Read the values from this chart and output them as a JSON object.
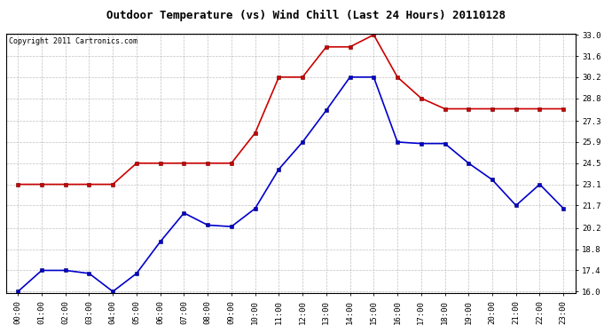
{
  "title": "Outdoor Temperature (vs) Wind Chill (Last 24 Hours) 20110128",
  "copyright_text": "Copyright 2011 Cartronics.com",
  "x_labels": [
    "00:00",
    "01:00",
    "02:00",
    "03:00",
    "04:00",
    "05:00",
    "06:00",
    "07:00",
    "08:00",
    "09:00",
    "10:00",
    "11:00",
    "12:00",
    "13:00",
    "14:00",
    "15:00",
    "16:00",
    "17:00",
    "18:00",
    "19:00",
    "20:00",
    "21:00",
    "22:00",
    "23:00"
  ],
  "temp_data": [
    16.0,
    17.4,
    17.4,
    17.2,
    16.0,
    17.2,
    19.3,
    21.2,
    20.4,
    20.3,
    21.5,
    24.1,
    25.9,
    28.0,
    30.2,
    30.2,
    25.9,
    25.8,
    25.8,
    24.5,
    23.4,
    21.7,
    23.1,
    21.5
  ],
  "wind_chill_data": [
    23.1,
    23.1,
    23.1,
    23.1,
    23.1,
    24.5,
    24.5,
    24.5,
    24.5,
    24.5,
    26.5,
    30.2,
    30.2,
    32.2,
    32.2,
    33.0,
    30.2,
    28.8,
    28.1,
    28.1,
    28.1,
    28.1,
    28.1,
    28.1
  ],
  "temp_color": "#0000cc",
  "wind_chill_color": "#cc0000",
  "bg_color": "#ffffff",
  "plot_bg_color": "#ffffff",
  "grid_color": "#b0b0b0",
  "y_min": 16.0,
  "y_max": 33.0,
  "y_ticks": [
    16.0,
    17.4,
    18.8,
    20.2,
    21.7,
    23.1,
    24.5,
    25.9,
    27.3,
    28.8,
    30.2,
    31.6,
    33.0
  ],
  "title_fontsize": 9,
  "copyright_fontsize": 6,
  "tick_fontsize": 6.5
}
